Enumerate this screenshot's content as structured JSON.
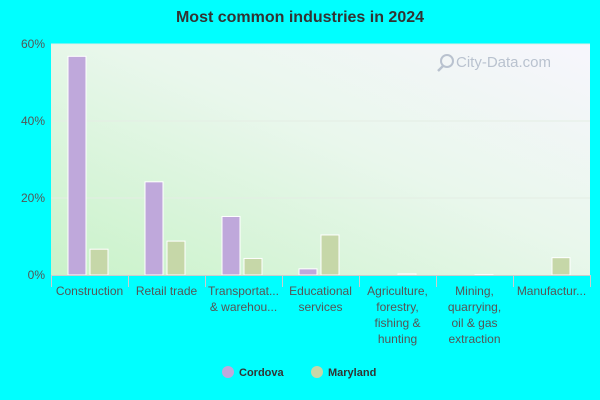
{
  "chart_data": {
    "type": "bar",
    "title": "Most common industries in 2024",
    "categories": [
      [
        "Construction"
      ],
      [
        "Retail trade"
      ],
      [
        "Transportat...",
        "& warehou..."
      ],
      [
        "Educational",
        "services"
      ],
      [
        "Agriculture,",
        "forestry,",
        "fishing &",
        "hunting"
      ],
      [
        "Mining,",
        "quarrying,",
        "oil & gas",
        "extraction"
      ],
      [
        "Manufactur..."
      ]
    ],
    "series": [
      {
        "name": "Cordova",
        "color": "#bfa8db",
        "values": [
          56.8,
          24.2,
          15.2,
          1.6,
          0.0,
          0.0,
          0.0
        ]
      },
      {
        "name": "Maryland",
        "color": "#c6d7a8",
        "values": [
          6.7,
          8.8,
          4.3,
          10.4,
          0.3,
          0.1,
          4.5
        ]
      }
    ],
    "yticks": [
      "0%",
      "20%",
      "40%",
      "60%"
    ],
    "ylim": [
      0,
      60
    ],
    "grid": true,
    "legend_position": "bottom"
  },
  "watermark": "City-Data.com"
}
